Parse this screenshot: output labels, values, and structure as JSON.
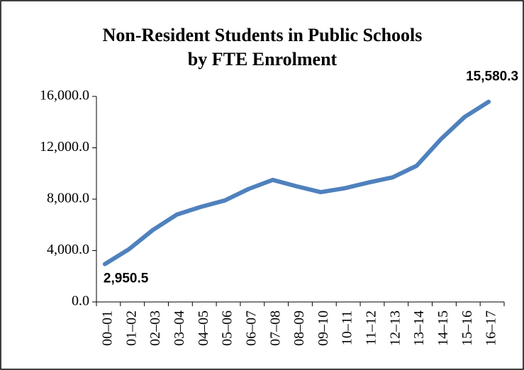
{
  "chart_data": {
    "type": "line",
    "title": [
      "Non-Resident Students in Public Schools",
      "by FTE Enrolment"
    ],
    "categories": [
      "00–01",
      "01–02",
      "02–03",
      "03–04",
      "04–05",
      "05–06",
      "06–07",
      "07–08",
      "08–09",
      "09–10",
      "10–11",
      "11–12",
      "12–13",
      "13–14",
      "14–15",
      "15–16",
      "16–17"
    ],
    "values": [
      2950.5,
      4100,
      5600,
      6800,
      7400,
      7900,
      8800,
      9500,
      9000,
      8550,
      8850,
      9300,
      9700,
      10600,
      12650,
      14400,
      15580.3
    ],
    "value_labels": [
      "2,950.5",
      null,
      null,
      null,
      null,
      null,
      null,
      null,
      null,
      null,
      null,
      null,
      null,
      null,
      null,
      null,
      "15,580.3"
    ],
    "color": "#4f81bd",
    "ylim": [
      0,
      16000
    ],
    "yticks": [
      {
        "value": 0,
        "label": "0.0"
      },
      {
        "value": 4000,
        "label": "4,000.0"
      },
      {
        "value": 8000,
        "label": "8,000.0"
      },
      {
        "value": 12000,
        "label": "12,000.0"
      },
      {
        "value": 16000,
        "label": "16,000.0"
      }
    ],
    "grid": false
  }
}
